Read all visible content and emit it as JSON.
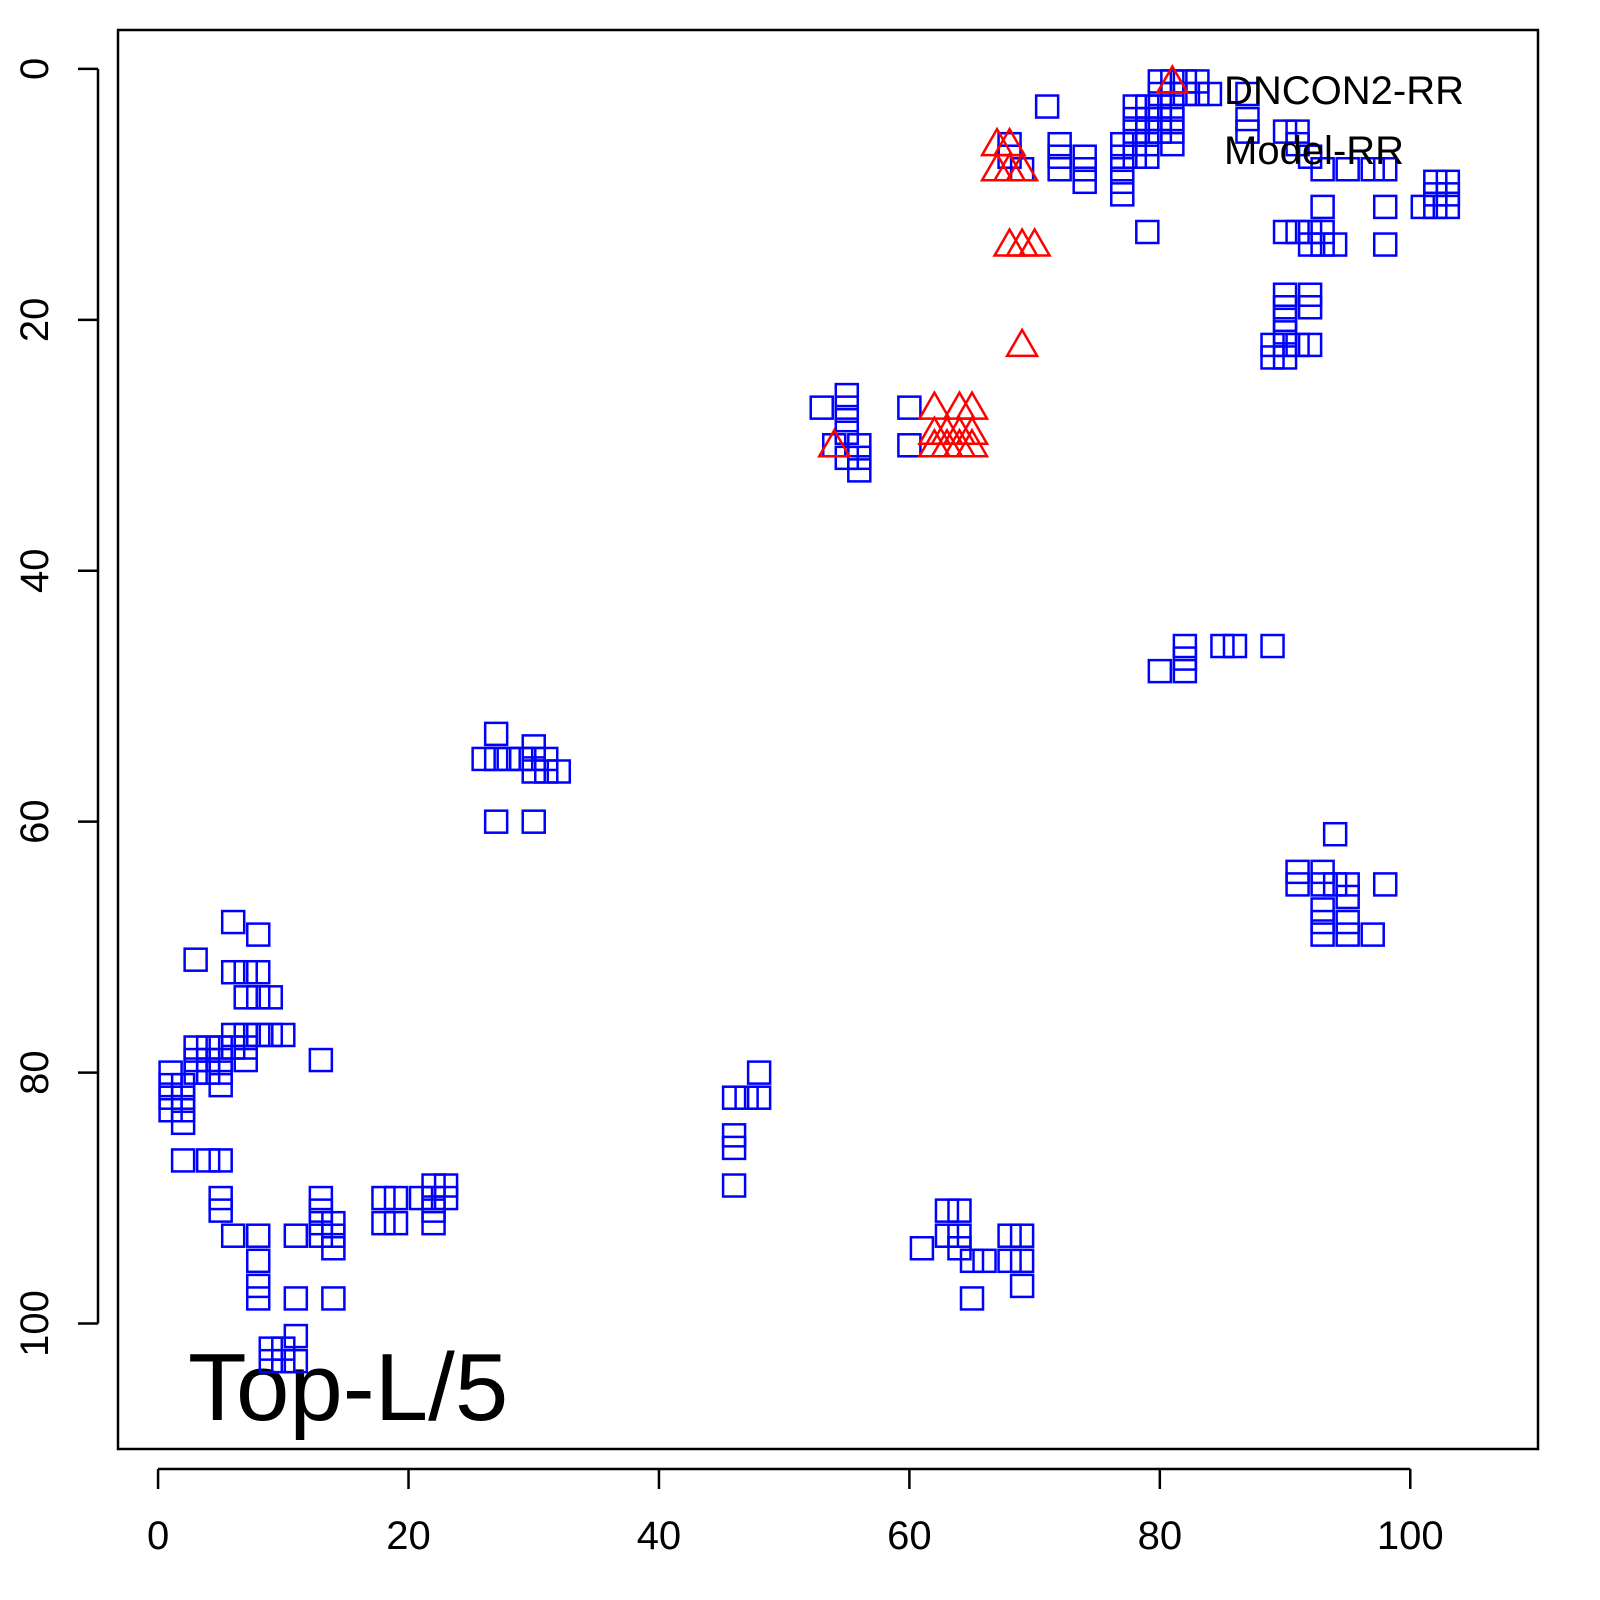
{
  "chart_data": {
    "type": "scatter",
    "annotation": "Top-L/5",
    "xlim": [
      -3.2,
      110.2
    ],
    "ylim": [
      -3.1,
      110
    ],
    "y_reversed": true,
    "xticks": [
      0,
      20,
      40,
      60,
      80,
      100
    ],
    "yticks": [
      0,
      20,
      40,
      60,
      80,
      100
    ],
    "series": [
      {
        "name": "DNCON2-RR",
        "color": "#ff0000",
        "marker": "triangle",
        "x": [
          67,
          68,
          67,
          68,
          69,
          68,
          69,
          70,
          69,
          54,
          62,
          62,
          62,
          63,
          63,
          64,
          64,
          64,
          65,
          65,
          65,
          81
        ],
        "y": [
          6,
          6,
          8,
          8,
          8,
          14,
          14,
          14,
          22,
          30,
          27,
          29,
          30,
          29,
          30,
          27,
          29,
          30,
          27,
          29,
          30,
          1
        ]
      },
      {
        "name": "Model-RR",
        "color": "#0000ff",
        "marker": "square",
        "x": [
          71,
          72,
          72,
          72,
          74,
          74,
          74,
          77,
          77,
          77,
          77,
          77,
          78,
          78,
          78,
          78,
          78,
          79,
          79,
          79,
          79,
          79,
          80,
          80,
          80,
          80,
          80,
          81,
          81,
          81,
          81,
          81,
          81,
          82,
          82,
          83,
          83,
          84,
          68,
          68,
          69,
          79,
          87,
          87,
          87,
          90,
          91,
          91,
          92,
          93,
          95,
          97,
          98,
          101,
          102,
          102,
          102,
          103,
          103,
          103,
          98,
          98,
          90,
          91,
          92,
          92,
          93,
          93,
          93,
          94,
          90,
          90,
          90,
          90,
          90,
          92,
          92,
          92,
          89,
          89,
          90,
          91,
          55,
          55,
          55,
          55,
          53,
          54,
          56,
          56,
          56,
          55,
          60,
          60,
          80,
          82,
          82,
          82,
          85,
          86,
          89,
          27,
          26,
          27,
          28,
          29,
          30,
          30,
          30,
          31,
          31,
          32,
          27,
          30,
          94,
          93,
          93,
          94,
          95,
          91,
          91,
          95,
          98,
          93,
          93,
          95,
          95,
          97,
          93,
          6,
          8,
          3,
          6,
          7,
          8,
          7,
          8,
          9,
          6,
          7,
          8,
          9,
          10,
          13,
          7,
          7,
          6,
          5,
          5,
          4,
          4,
          3,
          3,
          3,
          4,
          5,
          5,
          1,
          1,
          1,
          1,
          2,
          2,
          2,
          2,
          2,
          4,
          5,
          5,
          5,
          6,
          8,
          8,
          8,
          8,
          11,
          11,
          13,
          13,
          13,
          13,
          14,
          14,
          14,
          14,
          18,
          18,
          19,
          19,
          21,
          22,
          22,
          22,
          22,
          23,
          23,
          9,
          9,
          10,
          10,
          11,
          11,
          46,
          46,
          46,
          46,
          47,
          48,
          48,
          61,
          63,
          63,
          64,
          64,
          64,
          65,
          65,
          66,
          68,
          68,
          69,
          69,
          69
        ],
        "y": [
          3,
          6,
          7,
          8,
          7,
          8,
          9,
          6,
          7,
          8,
          9,
          10,
          3,
          4,
          5,
          6,
          7,
          3,
          4,
          5,
          6,
          7,
          1,
          2,
          3,
          4,
          5,
          1,
          2,
          3,
          4,
          5,
          6,
          1,
          2,
          1,
          2,
          2,
          6,
          7,
          8,
          13,
          2,
          4,
          5,
          5,
          5,
          6,
          7,
          8,
          8,
          8,
          8,
          11,
          9,
          10,
          11,
          9,
          10,
          11,
          11,
          14,
          13,
          13,
          13,
          14,
          11,
          13,
          14,
          14,
          18,
          19,
          20,
          21,
          22,
          18,
          19,
          22,
          22,
          23,
          23,
          22,
          26,
          27,
          28,
          29,
          27,
          30,
          30,
          31,
          32,
          31,
          27,
          30,
          48,
          46,
          47,
          48,
          46,
          46,
          46,
          53,
          55,
          55,
          55,
          55,
          54,
          55,
          56,
          55,
          56,
          56,
          60,
          60,
          61,
          64,
          65,
          65,
          65,
          64,
          65,
          66,
          65,
          68,
          69,
          68,
          69,
          69,
          67,
          68,
          69,
          71,
          72,
          72,
          72,
          74,
          74,
          74,
          77,
          77,
          77,
          77,
          77,
          79,
          78,
          79,
          78,
          78,
          79,
          78,
          80,
          78,
          79,
          80,
          79,
          80,
          81,
          80,
          81,
          82,
          83,
          82,
          83,
          84,
          81,
          87,
          87,
          87,
          90,
          91,
          93,
          93,
          95,
          97,
          98,
          93,
          98,
          90,
          91,
          92,
          93,
          92,
          93,
          94,
          98,
          90,
          92,
          90,
          92,
          90,
          89,
          90,
          91,
          92,
          89,
          90,
          102,
          103,
          102,
          103,
          101,
          103,
          82,
          85,
          86,
          89,
          82,
          80,
          82,
          94,
          91,
          93,
          91,
          93,
          94,
          95,
          98,
          95,
          93,
          95,
          93,
          95,
          97
        ]
      }
    ]
  }
}
